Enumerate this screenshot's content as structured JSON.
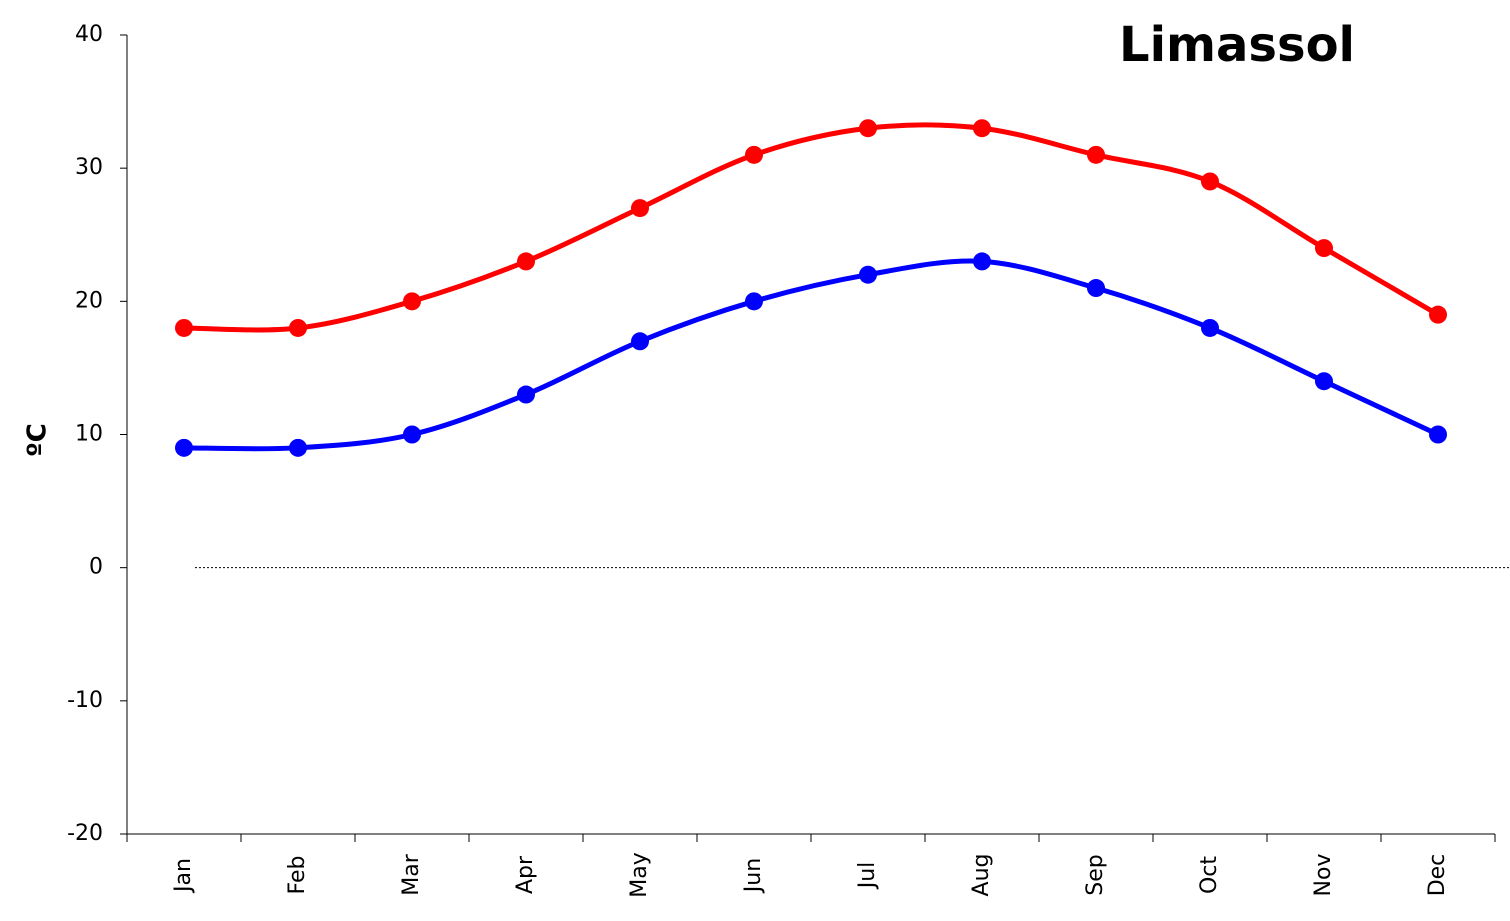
{
  "chart_data": {
    "type": "line",
    "title": "Limassol",
    "y_label": "ºC",
    "categories": [
      "Jan",
      "Feb",
      "Mar",
      "Apr",
      "May",
      "Jun",
      "Jul",
      "Aug",
      "Sep",
      "Oct",
      "Nov",
      "Dec"
    ],
    "series": [
      {
        "color": "#ff0000",
        "values": [
          18,
          18,
          20,
          23,
          27,
          31,
          33,
          33,
          31,
          29,
          24,
          19
        ]
      },
      {
        "color": "#0000ff",
        "values": [
          9,
          9,
          10,
          13,
          17,
          20,
          22,
          23,
          21,
          18,
          14,
          10
        ]
      }
    ],
    "ylim": [
      -20,
      40
    ],
    "yticks": [
      -20,
      -10,
      0,
      10,
      20,
      30,
      40
    ],
    "zero_line": true,
    "smooth": true
  }
}
